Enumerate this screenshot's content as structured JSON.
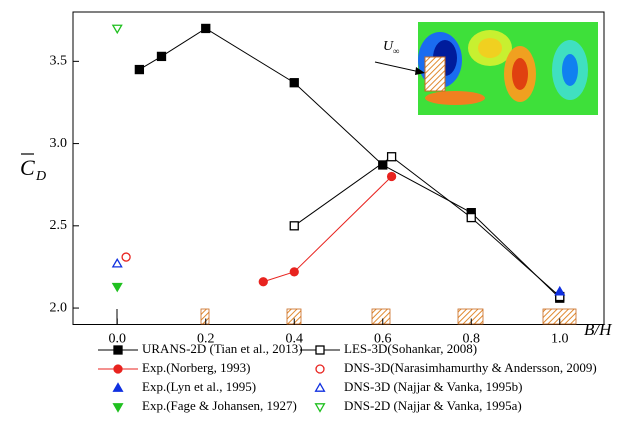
{
  "chart_data": {
    "type": "line",
    "xlabel": "B/H",
    "ylabel": "C",
    "ylabel_sub": "D",
    "inset_label": "U",
    "inset_label_sub": "∞",
    "xlim": [
      -0.1,
      1.1
    ],
    "ylim": [
      1.9,
      3.8
    ],
    "xticks": [
      {
        "value": 0,
        "label": "0.0"
      },
      0.2,
      0.4,
      0.6,
      0.8,
      {
        "value": 1,
        "label": "1.0"
      }
    ],
    "yticks": [
      {
        "value": 2,
        "label": "2.0"
      },
      2.5,
      {
        "value": 3,
        "label": "3.0"
      },
      3.5
    ],
    "series": [
      {
        "name": "URANS-2D (Tian et al., 2013)",
        "color": "#000000",
        "marker": "square",
        "filled": true,
        "line": true,
        "x": [
          0.05,
          0.1,
          0.2,
          0.4,
          0.6,
          0.8,
          1.0
        ],
        "values": [
          3.45,
          3.53,
          3.7,
          3.37,
          2.87,
          2.58,
          2.06
        ]
      },
      {
        "name": "LES-3D(Sohankar, 2008)",
        "color": "#000000",
        "marker": "square",
        "filled": false,
        "line": true,
        "x": [
          0.4,
          0.62,
          0.8,
          1.0
        ],
        "values": [
          2.5,
          2.92,
          2.55,
          2.07
        ]
      },
      {
        "name": "Exp.(Norberg, 1993)",
        "color": "#e8231f",
        "marker": "circle",
        "filled": true,
        "line": true,
        "x": [
          0.33,
          0.4,
          0.62
        ],
        "values": [
          2.16,
          2.22,
          2.8
        ]
      },
      {
        "name": "DNS-3D(Narasimhamurthy & Andersson, 2009)",
        "color": "#e8231f",
        "marker": "circle",
        "filled": false,
        "line": false,
        "x": [
          0.02
        ],
        "values": [
          2.31
        ]
      },
      {
        "name": "Exp.(Lyn et al., 1995)",
        "color": "#1030e0",
        "marker": "triangle-up",
        "filled": true,
        "line": false,
        "x": [
          1.0
        ],
        "values": [
          2.1
        ]
      },
      {
        "name": "DNS-3D (Najjar & Vanka, 1995b)",
        "color": "#1030e0",
        "marker": "triangle-up",
        "filled": false,
        "line": false,
        "x": [
          0.0
        ],
        "values": [
          2.27
        ]
      },
      {
        "name": "Exp.(Fage & Johansen, 1927)",
        "color": "#20c020",
        "marker": "triangle-down",
        "filled": true,
        "line": false,
        "x": [
          0.0
        ],
        "values": [
          2.13
        ]
      },
      {
        "name": "DNS-2D (Najjar & Vanka, 1995a)",
        "color": "#20c020",
        "marker": "triangle-down",
        "filled": false,
        "line": false,
        "x": [
          0.0
        ],
        "values": [
          3.7
        ]
      }
    ]
  }
}
